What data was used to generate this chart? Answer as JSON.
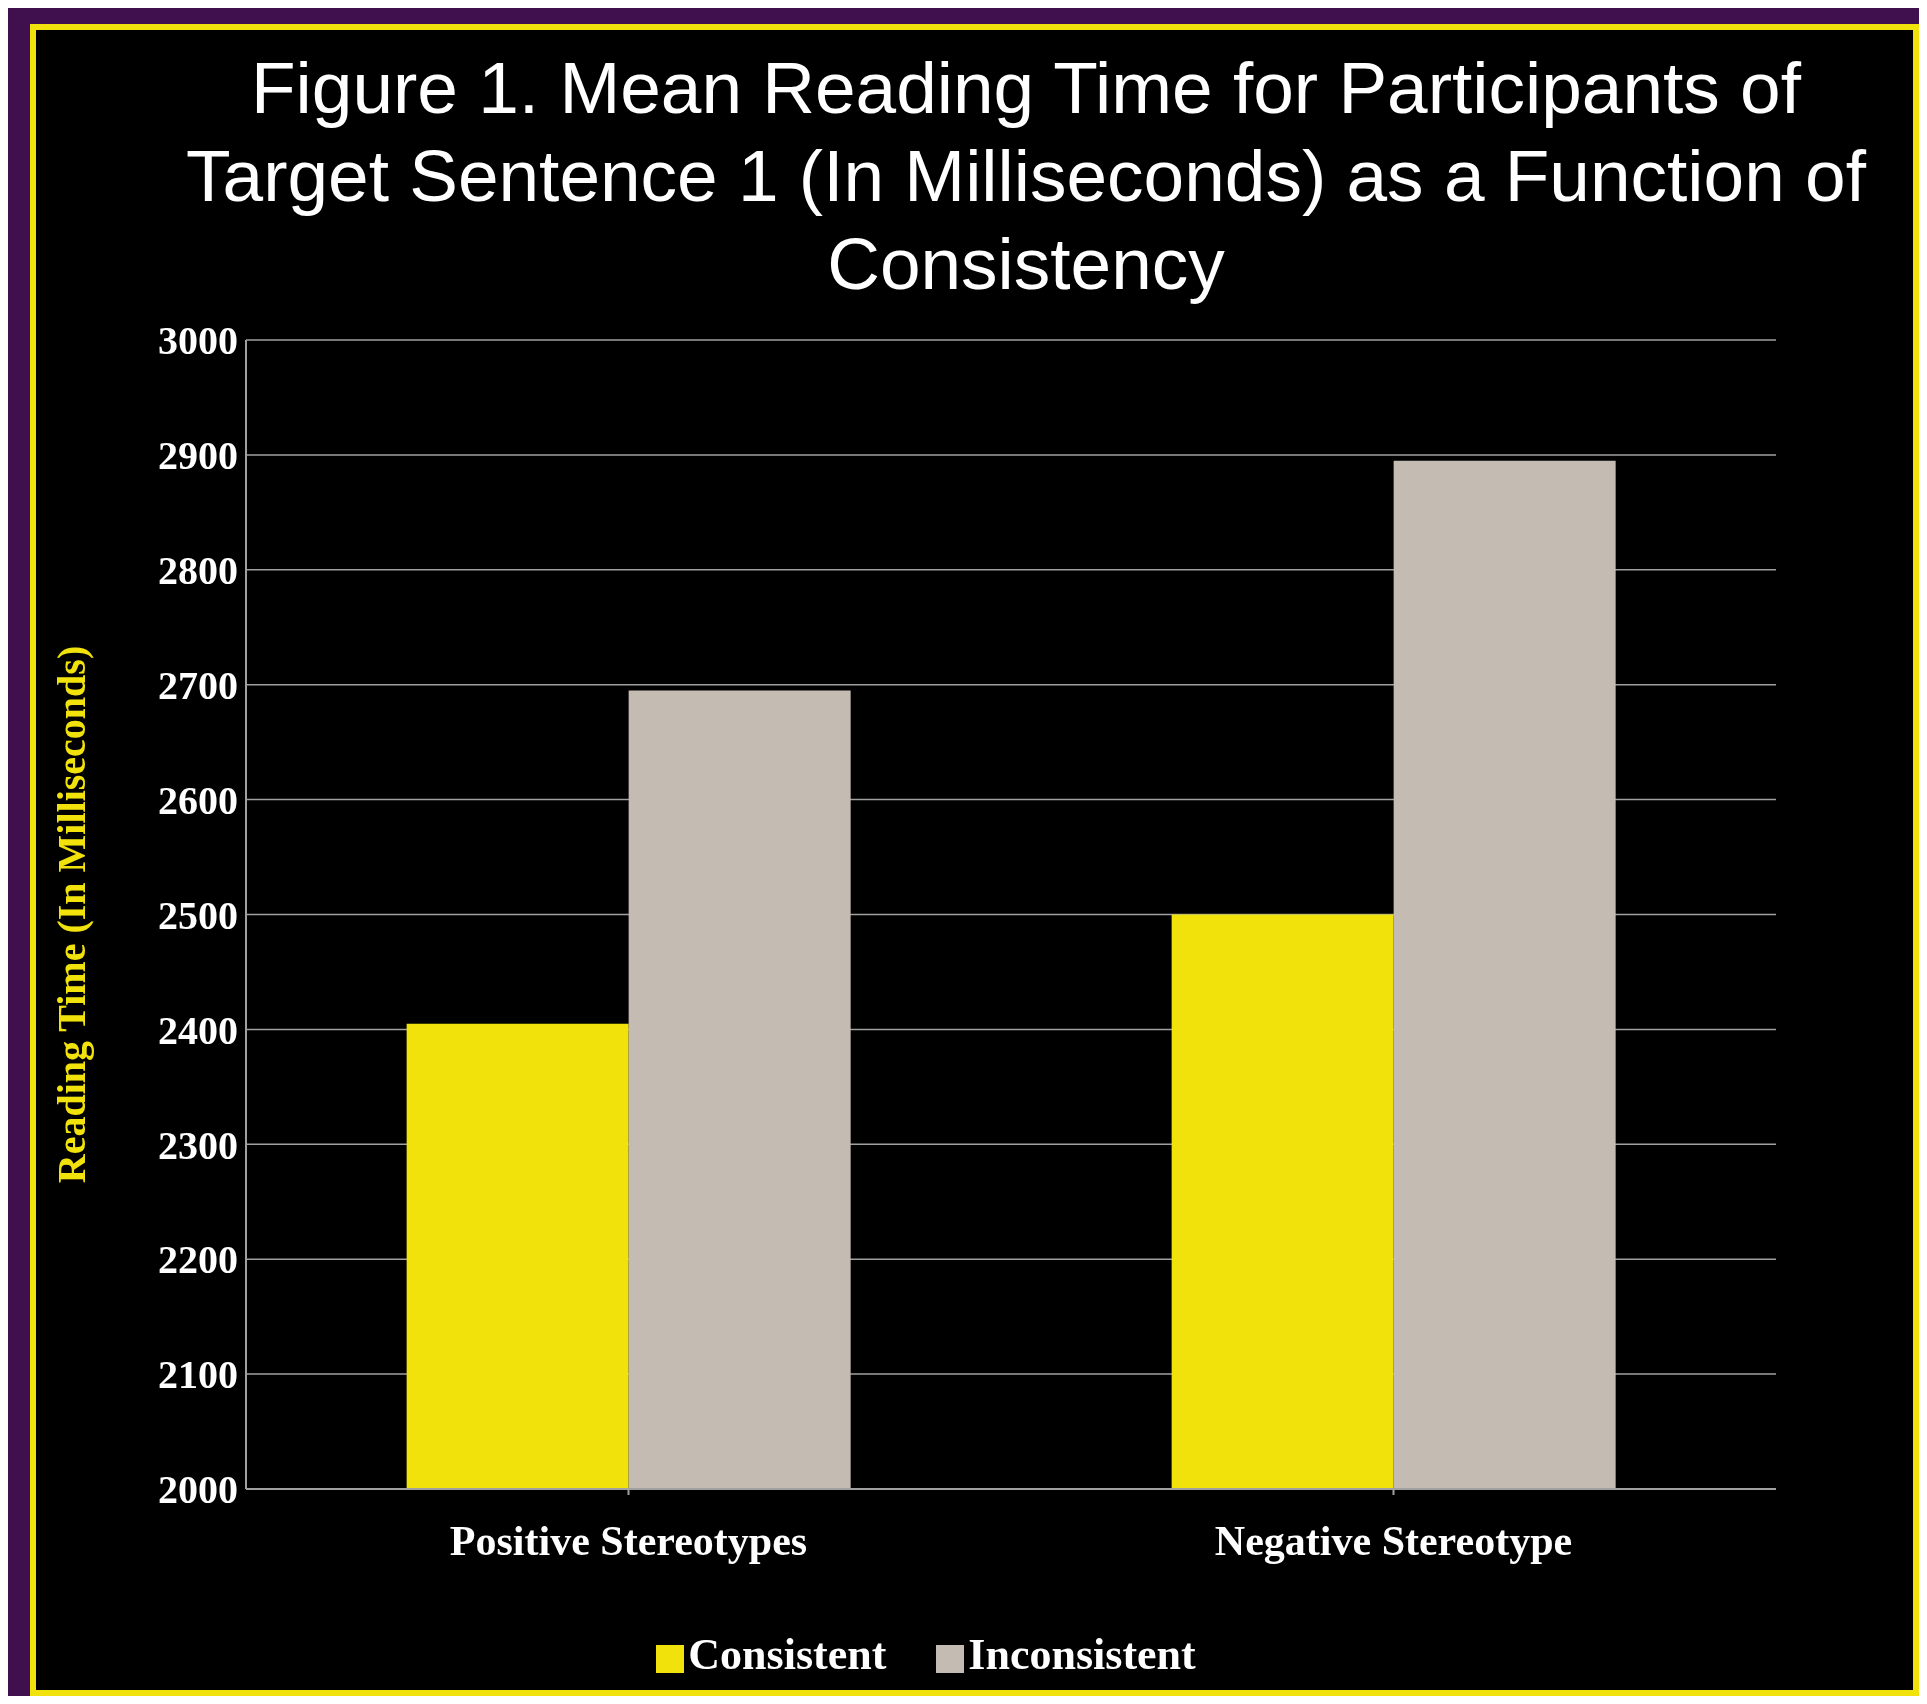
{
  "chart_data": {
    "type": "bar",
    "title": "Figure 1. Mean Reading Time for Participants of Target Sentence 1 (In Milliseconds) as a Function of Consistency",
    "ylabel": "Reading Time (In Milliseconds)",
    "categories": [
      "Positive Stereotypes",
      "Negative Stereotype"
    ],
    "series": [
      {
        "name": "Consistent",
        "color": "#f0e20a",
        "values": [
          2405,
          2500
        ]
      },
      {
        "name": "Inconsistent",
        "color": "#c4bcb2",
        "values": [
          2695,
          2895
        ]
      }
    ],
    "ylim": [
      2000,
      3000
    ],
    "yticks": [
      2000,
      2100,
      2200,
      2300,
      2400,
      2500,
      2600,
      2700,
      2800,
      2900,
      3000
    ],
    "grid": "y",
    "legend": "bottom"
  }
}
